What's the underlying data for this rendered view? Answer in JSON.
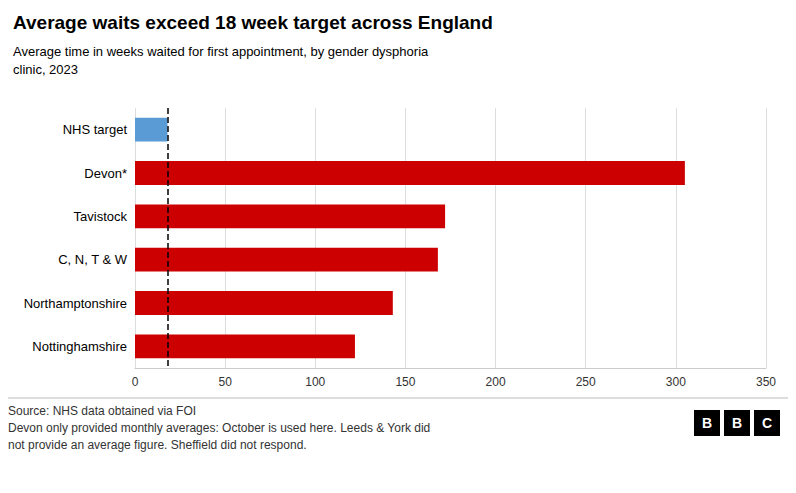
{
  "chart_data": {
    "type": "bar",
    "orientation": "horizontal",
    "title": "Average waits exceed 18 week target across England",
    "subtitle": "Average time in weeks waited for first appointment, by gender dysphoria\nclinic, 2023",
    "categories": [
      "NHS target",
      "Devon*",
      "Tavistock",
      "C, N, T & W",
      "Northamptonshire",
      "Nottinghamshire"
    ],
    "values": [
      18,
      305,
      172,
      168,
      143,
      122
    ],
    "colors": [
      "#5b9bd5",
      "#cc0000",
      "#cc0000",
      "#cc0000",
      "#cc0000",
      "#cc0000"
    ],
    "vline": 18,
    "xlim": [
      0,
      350
    ],
    "xticks": [
      0,
      50,
      100,
      150,
      200,
      250,
      300,
      350
    ],
    "grid": true,
    "annotations": [
      "Source: NHS data obtained via FOI",
      "Devon only provided monthly averages: October is used here. Leeds & York did",
      "not provide an average figure. Sheffield did not respond."
    ],
    "logo": "BBC"
  }
}
